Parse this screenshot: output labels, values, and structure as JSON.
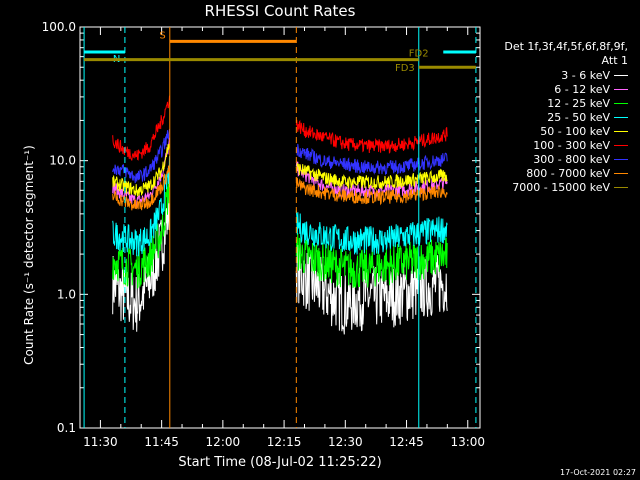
{
  "chart_data": {
    "type": "line",
    "title": "RHESSI Count Rates",
    "xlabel": "Start Time (08-Jul-02 11:25:22)",
    "ylabel": "Count Rate (s⁻¹ detector segment⁻¹)",
    "yscale": "log",
    "ylim": [
      0.1,
      100.0
    ],
    "xlim": [
      "11:25",
      "13:03"
    ],
    "yticks": [
      "0.1",
      "1.0",
      "10.0",
      "100.0"
    ],
    "xticks": [
      "11:30",
      "11:45",
      "12:00",
      "12:15",
      "12:30",
      "12:45",
      "13:00"
    ],
    "legend_title": [
      "Det 1f,3f,4f,5f,6f,8f,9f,",
      "Att 1"
    ],
    "legend_position": "right",
    "data_gaps": [
      [
        "11:26",
        "11:33"
      ],
      [
        "11:47",
        "12:18"
      ],
      [
        "12:56",
        "13:03"
      ]
    ],
    "series": [
      {
        "name": "3 - 6 keV",
        "color": "#ffffff",
        "x": [
          "11:33",
          "11:36",
          "11:39",
          "11:42",
          "11:45",
          "11:47",
          "12:18",
          "12:20",
          "12:25",
          "12:30",
          "12:35",
          "12:40",
          "12:45",
          "12:50",
          "12:55"
        ],
        "values": [
          1.3,
          1.0,
          0.9,
          1.3,
          2.5,
          5.0,
          1.6,
          1.4,
          1.1,
          0.9,
          1.0,
          1.0,
          1.1,
          1.2,
          1.3
        ]
      },
      {
        "name": "6 - 12 keV",
        "color": "#ff66ff",
        "x": [
          "11:33",
          "11:36",
          "11:39",
          "11:42",
          "11:45",
          "11:47",
          "12:18",
          "12:20",
          "12:25",
          "12:30",
          "12:35",
          "12:40",
          "12:45",
          "12:50",
          "12:55"
        ],
        "values": [
          6.5,
          5.5,
          5.0,
          5.5,
          8.0,
          14.0,
          9.0,
          8.0,
          6.5,
          6.0,
          6.0,
          6.0,
          6.2,
          6.5,
          7.0
        ]
      },
      {
        "name": "12 - 25 keV",
        "color": "#00ff00",
        "x": [
          "11:33",
          "11:36",
          "11:39",
          "11:42",
          "11:45",
          "11:47",
          "12:18",
          "12:20",
          "12:25",
          "12:30",
          "12:35",
          "12:40",
          "12:45",
          "12:50",
          "12:55"
        ],
        "values": [
          1.9,
          1.7,
          1.6,
          1.9,
          3.0,
          7.0,
          2.2,
          2.0,
          1.8,
          1.6,
          1.6,
          1.7,
          1.8,
          1.9,
          2.0
        ]
      },
      {
        "name": "25 - 50 keV",
        "color": "#00ffff",
        "x": [
          "11:33",
          "11:36",
          "11:39",
          "11:42",
          "11:45",
          "11:47",
          "12:18",
          "12:20",
          "12:25",
          "12:30",
          "12:35",
          "12:40",
          "12:45",
          "12:50",
          "12:55"
        ],
        "values": [
          2.9,
          2.7,
          2.5,
          2.8,
          4.5,
          9.0,
          3.4,
          3.1,
          2.8,
          2.6,
          2.6,
          2.6,
          2.8,
          3.0,
          3.2
        ]
      },
      {
        "name": "50 - 100 keV",
        "color": "#ffff00",
        "x": [
          "11:33",
          "11:36",
          "11:39",
          "11:42",
          "11:45",
          "11:47",
          "12:18",
          "12:20",
          "12:25",
          "12:30",
          "12:35",
          "12:40",
          "12:45",
          "12:50",
          "12:55"
        ],
        "values": [
          7.0,
          6.5,
          6.0,
          6.5,
          8.5,
          14.0,
          9.0,
          8.5,
          7.5,
          7.0,
          7.0,
          7.0,
          7.2,
          7.5,
          7.8
        ]
      },
      {
        "name": "100 - 300 keV",
        "color": "#ff0000",
        "x": [
          "11:33",
          "11:36",
          "11:39",
          "11:42",
          "11:45",
          "11:47",
          "12:18",
          "12:20",
          "12:25",
          "12:30",
          "12:35",
          "12:40",
          "12:45",
          "12:50",
          "12:55"
        ],
        "values": [
          14.5,
          12.0,
          11.0,
          13.0,
          20.0,
          30.0,
          19.0,
          17.0,
          15.0,
          13.5,
          13.0,
          13.0,
          13.5,
          14.5,
          16.0
        ]
      },
      {
        "name": "300 - 800 keV",
        "color": "#3333ff",
        "x": [
          "11:33",
          "11:36",
          "11:39",
          "11:42",
          "11:45",
          "11:47",
          "12:18",
          "12:20",
          "12:25",
          "12:30",
          "12:35",
          "12:40",
          "12:45",
          "12:50",
          "12:55"
        ],
        "values": [
          9.0,
          8.5,
          7.5,
          8.5,
          12.0,
          17.0,
          12.5,
          11.5,
          10.0,
          9.5,
          9.0,
          9.0,
          9.2,
          9.8,
          10.5
        ]
      },
      {
        "name": "800 - 7000 keV",
        "color": "#ff8800",
        "x": [
          "11:33",
          "11:36",
          "11:39",
          "11:42",
          "11:45",
          "11:47",
          "12:18",
          "12:20",
          "12:25",
          "12:30",
          "12:35",
          "12:40",
          "12:45",
          "12:50",
          "12:55"
        ],
        "values": [
          5.5,
          5.0,
          4.6,
          5.0,
          6.5,
          9.0,
          6.8,
          6.3,
          5.8,
          5.5,
          5.4,
          5.4,
          5.5,
          5.8,
          6.0
        ]
      },
      {
        "name": "7000 - 15000 keV",
        "color": "#9a8a00",
        "x": [],
        "values": []
      }
    ],
    "annotations": [
      {
        "label": "N",
        "color": "#00ffff",
        "type": "flag",
        "x_start": "11:26",
        "x_end": "11:36",
        "y": 65
      },
      {
        "label": "S",
        "color": "#ff8800",
        "type": "flag",
        "x_start": "11:47",
        "x_end": "12:18",
        "y": 78
      },
      {
        "label": "FD2",
        "color": "#9a8a00",
        "type": "flag",
        "x_start": "11:26",
        "x_end": "12:48",
        "y": 57
      },
      {
        "label": "",
        "color": "#00ffff",
        "type": "flag",
        "x_start": "12:54",
        "x_end": "13:02",
        "y": 65
      },
      {
        "label": "FD3",
        "color": "#9a8a00",
        "type": "flag",
        "x_start": "12:48",
        "x_end": "13:02",
        "y": 50
      }
    ],
    "vlines": [
      {
        "x": "11:26",
        "color": "#00ffff",
        "style": "solid"
      },
      {
        "x": "11:36",
        "color": "#00ffff",
        "style": "dashed"
      },
      {
        "x": "11:47",
        "color": "#ff8800",
        "style": "solid"
      },
      {
        "x": "12:18",
        "color": "#ff8800",
        "style": "dashed"
      },
      {
        "x": "12:48",
        "color": "#00ffff",
        "style": "solid"
      },
      {
        "x": "13:02",
        "color": "#00ffff",
        "style": "dashed"
      }
    ]
  },
  "timestamp": "17-Oct-2021 02:27"
}
